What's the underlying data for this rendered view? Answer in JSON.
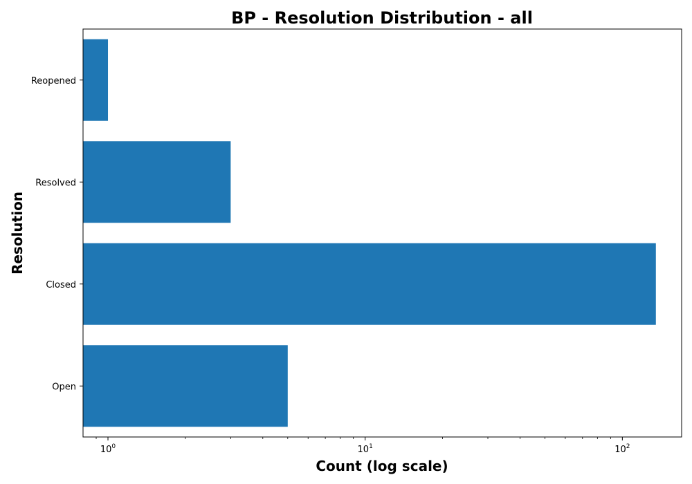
{
  "chart_data": {
    "type": "bar",
    "orientation": "horizontal",
    "title": "BP - Resolution Distribution - all",
    "xlabel": "Count (log scale)",
    "ylabel": "Resolution",
    "x_scale": "log",
    "xlim": [
      0.8,
      170
    ],
    "grid": false,
    "categories": [
      "Open",
      "Closed",
      "Resolved",
      "Reopened"
    ],
    "values": [
      5,
      135,
      3,
      1
    ],
    "bar_color": "#1f77b4",
    "x_ticks": [
      {
        "base": "10",
        "exp": "0",
        "value": 1
      },
      {
        "base": "10",
        "exp": "1",
        "value": 10
      },
      {
        "base": "10",
        "exp": "2",
        "value": 100
      }
    ]
  }
}
